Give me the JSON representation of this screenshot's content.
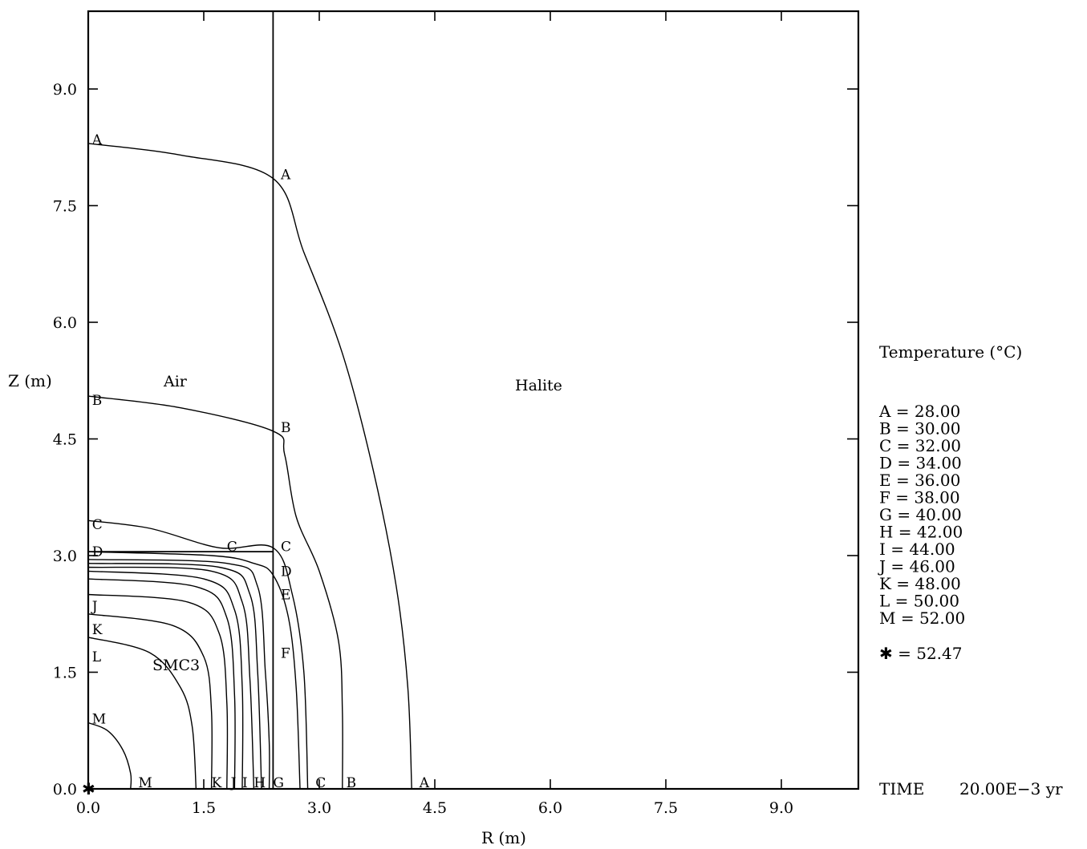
{
  "chart_data": {
    "type": "contour",
    "xlabel": "R (m)",
    "ylabel": "Z (m)",
    "xlim": [
      0,
      10
    ],
    "ylim": [
      0,
      10
    ],
    "x_ticks": [
      "0.0",
      "1.5",
      "3.0",
      "4.5",
      "6.0",
      "7.5",
      "9.0"
    ],
    "y_ticks": [
      "0.0",
      "1.5",
      "3.0",
      "4.5",
      "6.0",
      "7.5",
      "9.0"
    ],
    "regions": [
      "Air",
      "Halite",
      "SMC3"
    ],
    "legend_title": "Temperature (°C)",
    "legend_entries": [
      {
        "letter": "A",
        "text": "A =  28.00",
        "value": 28.0
      },
      {
        "letter": "B",
        "text": "B =  30.00",
        "value": 30.0
      },
      {
        "letter": "C",
        "text": "C =  32.00",
        "value": 32.0
      },
      {
        "letter": "D",
        "text": "D =  34.00",
        "value": 34.0
      },
      {
        "letter": "E",
        "text": "E =  36.00",
        "value": 36.0
      },
      {
        "letter": "F",
        "text": "F =  38.00",
        "value": 38.0
      },
      {
        "letter": "G",
        "text": "G =  40.00",
        "value": 40.0
      },
      {
        "letter": "H",
        "text": "H =  42.00",
        "value": 42.0
      },
      {
        "letter": "I",
        "text": "I =  44.00",
        "value": 44.0
      },
      {
        "letter": "J",
        "text": "J =  46.00",
        "value": 46.0
      },
      {
        "letter": "K",
        "text": "K =  48.00",
        "value": 48.0
      },
      {
        "letter": "L",
        "text": "L =  50.00",
        "value": 50.0
      },
      {
        "letter": "M",
        "text": "M =  52.00",
        "value": 52.0
      }
    ],
    "max_marker": {
      "symbol": "✱",
      "text": "✱ = 52.47",
      "value": 52.47,
      "r": 0.0,
      "z": 0.0
    },
    "time_label": "TIME",
    "time_value": "20.00E−3 yr",
    "boundaries": [
      {
        "name": "air-halite-wall",
        "points": [
          [
            2.4,
            0
          ],
          [
            2.4,
            10
          ]
        ]
      },
      {
        "name": "smc3-top",
        "points": [
          [
            0,
            3.05
          ],
          [
            2.4,
            3.05
          ]
        ]
      }
    ],
    "contours": [
      {
        "letter": "A",
        "points": [
          [
            0,
            8.3
          ],
          [
            1.2,
            8.15
          ],
          [
            2.4,
            7.85
          ],
          [
            2.8,
            6.9
          ],
          [
            3.3,
            5.6
          ],
          [
            3.7,
            4.1
          ],
          [
            4.0,
            2.6
          ],
          [
            4.15,
            1.3
          ],
          [
            4.2,
            0
          ]
        ]
      },
      {
        "letter": "B",
        "points": [
          [
            0,
            5.05
          ],
          [
            1.2,
            4.9
          ],
          [
            2.4,
            4.6
          ],
          [
            2.55,
            4.3
          ],
          [
            2.7,
            3.5
          ],
          [
            3.0,
            2.8
          ],
          [
            3.25,
            1.9
          ],
          [
            3.3,
            1.0
          ],
          [
            3.3,
            0
          ]
        ]
      },
      {
        "letter": "C",
        "points": [
          [
            0,
            3.45
          ],
          [
            0.8,
            3.35
          ],
          [
            1.7,
            3.1
          ],
          [
            2.4,
            3.1
          ],
          [
            2.65,
            2.5
          ],
          [
            2.8,
            1.5
          ],
          [
            2.85,
            0
          ]
        ]
      },
      {
        "letter": "D",
        "points": [
          [
            0,
            3.05
          ],
          [
            1.6,
            3.0
          ],
          [
            2.15,
            2.9
          ],
          [
            2.4,
            2.75
          ],
          [
            2.6,
            2.2
          ],
          [
            2.7,
            1.3
          ],
          [
            2.75,
            0
          ]
        ]
      },
      {
        "letter": "E",
        "points": [
          [
            0,
            2.95
          ],
          [
            1.8,
            2.9
          ],
          [
            2.2,
            2.6
          ],
          [
            2.3,
            1.5
          ],
          [
            2.35,
            0.6
          ],
          [
            2.35,
            0
          ]
        ]
      },
      {
        "letter": "F",
        "points": [
          [
            0,
            2.9
          ],
          [
            1.7,
            2.85
          ],
          [
            2.1,
            2.5
          ],
          [
            2.2,
            1.5
          ],
          [
            2.25,
            0
          ]
        ]
      },
      {
        "letter": "G",
        "points": [
          [
            0,
            2.85
          ],
          [
            1.6,
            2.8
          ],
          [
            2.0,
            2.4
          ],
          [
            2.1,
            1.4
          ],
          [
            2.15,
            0
          ]
        ]
      },
      {
        "letter": "H",
        "points": [
          [
            0,
            2.8
          ],
          [
            1.5,
            2.7
          ],
          [
            1.9,
            2.3
          ],
          [
            2.0,
            1.3
          ],
          [
            2.0,
            0
          ]
        ]
      },
      {
        "letter": "I",
        "points": [
          [
            0,
            2.7
          ],
          [
            1.4,
            2.6
          ],
          [
            1.8,
            2.2
          ],
          [
            1.9,
            1.2
          ],
          [
            1.9,
            0
          ]
        ]
      },
      {
        "letter": "J",
        "points": [
          [
            0,
            2.5
          ],
          [
            1.3,
            2.4
          ],
          [
            1.7,
            2.0
          ],
          [
            1.8,
            1.1
          ],
          [
            1.8,
            0
          ]
        ]
      },
      {
        "letter": "K",
        "points": [
          [
            0,
            2.25
          ],
          [
            1.1,
            2.1
          ],
          [
            1.5,
            1.7
          ],
          [
            1.6,
            1.0
          ],
          [
            1.6,
            0
          ]
        ]
      },
      {
        "letter": "L",
        "points": [
          [
            0,
            1.95
          ],
          [
            0.8,
            1.75
          ],
          [
            1.2,
            1.3
          ],
          [
            1.35,
            0.8
          ],
          [
            1.4,
            0
          ]
        ]
      },
      {
        "letter": "M",
        "points": [
          [
            0,
            0.85
          ],
          [
            0.25,
            0.75
          ],
          [
            0.45,
            0.5
          ],
          [
            0.55,
            0.2
          ],
          [
            0.55,
            0
          ]
        ]
      }
    ],
    "contour_labels": [
      {
        "letter": "A",
        "r": 0.05,
        "z": 8.35
      },
      {
        "letter": "A",
        "r": 2.5,
        "z": 7.9
      },
      {
        "letter": "A",
        "r": 4.3,
        "z": 0.08
      },
      {
        "letter": "B",
        "r": 0.05,
        "z": 5.0
      },
      {
        "letter": "B",
        "r": 2.5,
        "z": 4.65
      },
      {
        "letter": "B",
        "r": 3.35,
        "z": 0.08
      },
      {
        "letter": "C",
        "r": 0.05,
        "z": 3.4
      },
      {
        "letter": "C",
        "r": 1.8,
        "z": 3.12
      },
      {
        "letter": "C",
        "r": 2.5,
        "z": 3.12
      },
      {
        "letter": "C",
        "r": 2.95,
        "z": 0.08
      },
      {
        "letter": "D",
        "r": 0.05,
        "z": 3.05
      },
      {
        "letter": "D",
        "r": 2.5,
        "z": 2.8
      },
      {
        "letter": "E",
        "r": 2.5,
        "z": 2.5
      },
      {
        "letter": "F",
        "r": 2.5,
        "z": 1.75
      },
      {
        "letter": "G",
        "r": 2.4,
        "z": 0.08
      },
      {
        "letter": "H",
        "r": 2.15,
        "z": 0.08
      },
      {
        "letter": "I",
        "r": 2.0,
        "z": 0.08
      },
      {
        "letter": "J",
        "r": 1.85,
        "z": 0.08
      },
      {
        "letter": "K",
        "r": 1.6,
        "z": 0.08
      },
      {
        "letter": "K",
        "r": 0.05,
        "z": 2.05
      },
      {
        "letter": "J",
        "r": 0.05,
        "z": 2.35
      },
      {
        "letter": "L",
        "r": 0.05,
        "z": 1.7
      },
      {
        "letter": "M",
        "r": 0.05,
        "z": 0.9
      },
      {
        "letter": "M",
        "r": 0.65,
        "z": 0.08
      }
    ]
  }
}
